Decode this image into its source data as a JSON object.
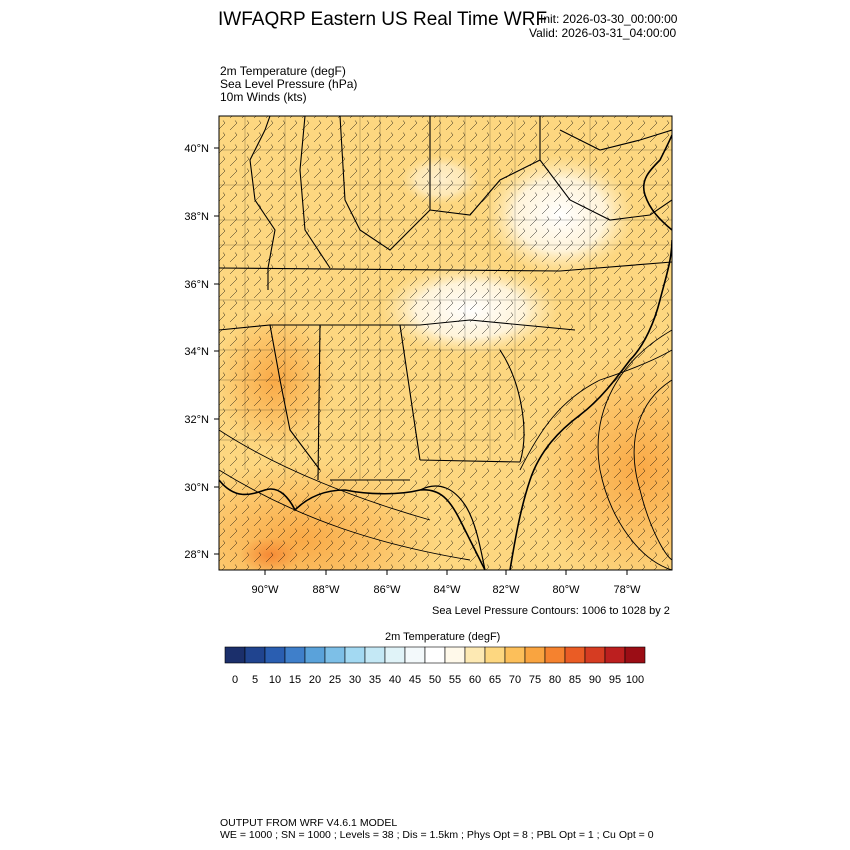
{
  "header": {
    "title": "IWFAQRP Eastern US Real Time WRF",
    "init": "Init: 2026-03-30_00:00:00",
    "valid": "Valid: 2026-03-31_04:00:00"
  },
  "variables": [
    "2m Temperature   (degF)",
    "Sea Level Pressure   (hPa)",
    "10m Winds   (kts)"
  ],
  "map": {
    "lat_ticks": [
      "40°N",
      "38°N",
      "36°N",
      "34°N",
      "32°N",
      "30°N",
      "28°N"
    ],
    "lon_ticks": [
      "90°W",
      "88°W",
      "86°W",
      "84°W",
      "82°W",
      "80°W",
      "78°W"
    ]
  },
  "slp_note": "Sea Level Pressure Contours: 1006 to 1028 by 2",
  "colorbar": {
    "title": "2m Temperature  (degF)",
    "labels": [
      "0",
      "5",
      "10",
      "15",
      "20",
      "25",
      "30",
      "35",
      "40",
      "45",
      "50",
      "55",
      "60",
      "65",
      "70",
      "75",
      "80",
      "85",
      "90",
      "95",
      "100"
    ],
    "colors": [
      "#1b2f6b",
      "#20448f",
      "#2a5eb1",
      "#3f7fca",
      "#5aa2da",
      "#7dbfe7",
      "#a3d9f2",
      "#c4e8f5",
      "#e0f3f8",
      "#f3f9fb",
      "#ffffff",
      "#fff9ea",
      "#fde9b3",
      "#fdd780",
      "#fcbf5a",
      "#f9a440",
      "#f5822f",
      "#ea5c25",
      "#d63c22",
      "#bc1f1f",
      "#9b0d15"
    ]
  },
  "footer": {
    "line1": "OUTPUT FROM WRF V4.6.1 MODEL",
    "line2": "WE = 1000 ; SN = 1000 ; Levels = 38 ; Dis = 1.5km ; Phys Opt = 8 ; PBL Opt = 1 ; Cu Opt = 0"
  }
}
